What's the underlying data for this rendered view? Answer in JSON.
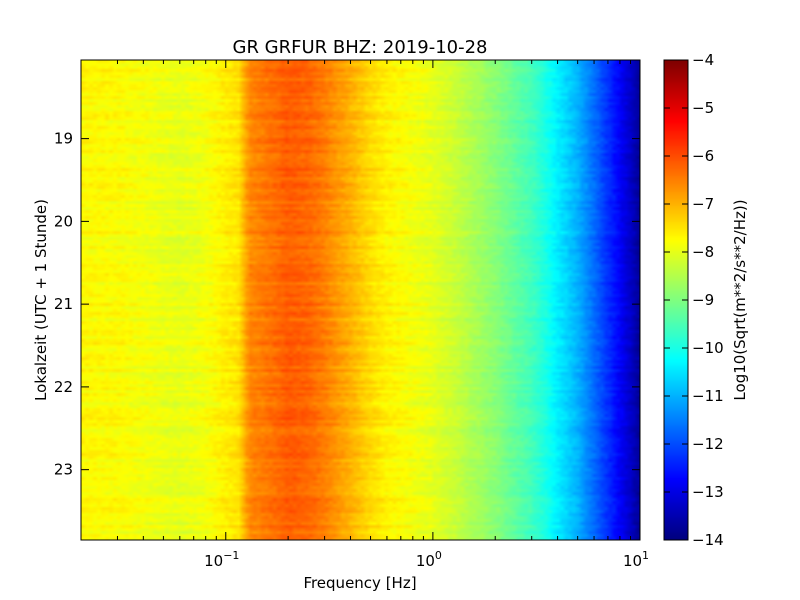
{
  "chart_data": {
    "type": "heatmap",
    "title": "GR GRFUR BHZ: 2019-10-28",
    "xlabel": "Frequency [Hz]",
    "ylabel": "Lokalzeit (UTC + 1 Stunde)",
    "xscale": "log",
    "xlim": [
      0.02,
      10
    ],
    "ylim": [
      18.05,
      23.85
    ],
    "y_inverted": true,
    "x_ticks": [
      {
        "value": 0.1,
        "base": "10",
        "exp": "-1"
      },
      {
        "value": 1,
        "base": "10",
        "exp": "0"
      },
      {
        "value": 10,
        "base": "10",
        "exp": "1"
      }
    ],
    "y_ticks": [
      {
        "value": 19,
        "label": "19"
      },
      {
        "value": 20,
        "label": "20"
      },
      {
        "value": 21,
        "label": "21"
      },
      {
        "value": 22,
        "label": "22"
      },
      {
        "value": 23,
        "label": "23"
      }
    ],
    "colorbar": {
      "label": "Log10(Sqrt(m**2/s**2/Hz))",
      "min": -14,
      "max": -4,
      "colormap": "jet",
      "ticks": [
        {
          "value": -4,
          "label": "−4"
        },
        {
          "value": -5,
          "label": "−5"
        },
        {
          "value": -6,
          "label": "−6"
        },
        {
          "value": -7,
          "label": "−7"
        },
        {
          "value": -8,
          "label": "−8"
        },
        {
          "value": -9,
          "label": "−9"
        },
        {
          "value": -10,
          "label": "−10"
        },
        {
          "value": -11,
          "label": "−11"
        },
        {
          "value": -12,
          "label": "−12"
        },
        {
          "value": -13,
          "label": "−13"
        },
        {
          "value": -14,
          "label": "−14"
        }
      ]
    },
    "spectrum_profile": {
      "frequencies_hz": [
        0.02,
        0.03,
        0.04,
        0.06,
        0.08,
        0.1,
        0.115,
        0.13,
        0.16,
        0.2,
        0.25,
        0.3,
        0.4,
        0.5,
        0.6,
        0.8,
        1.0,
        1.3,
        1.6,
        2.0,
        2.5,
        3.0,
        3.5,
        4.0,
        5.0,
        6.0,
        7.0,
        8.0,
        9.0,
        10.0
      ],
      "log_amplitude": [
        -7.7,
        -7.75,
        -7.85,
        -8.0,
        -7.85,
        -7.6,
        -7.5,
        -6.6,
        -6.4,
        -6.15,
        -6.25,
        -6.5,
        -7.0,
        -7.4,
        -7.65,
        -7.85,
        -8.0,
        -8.3,
        -8.6,
        -8.9,
        -9.3,
        -9.6,
        -10.0,
        -10.4,
        -11.0,
        -11.7,
        -12.3,
        -12.8,
        -13.3,
        -13.8
      ]
    }
  }
}
